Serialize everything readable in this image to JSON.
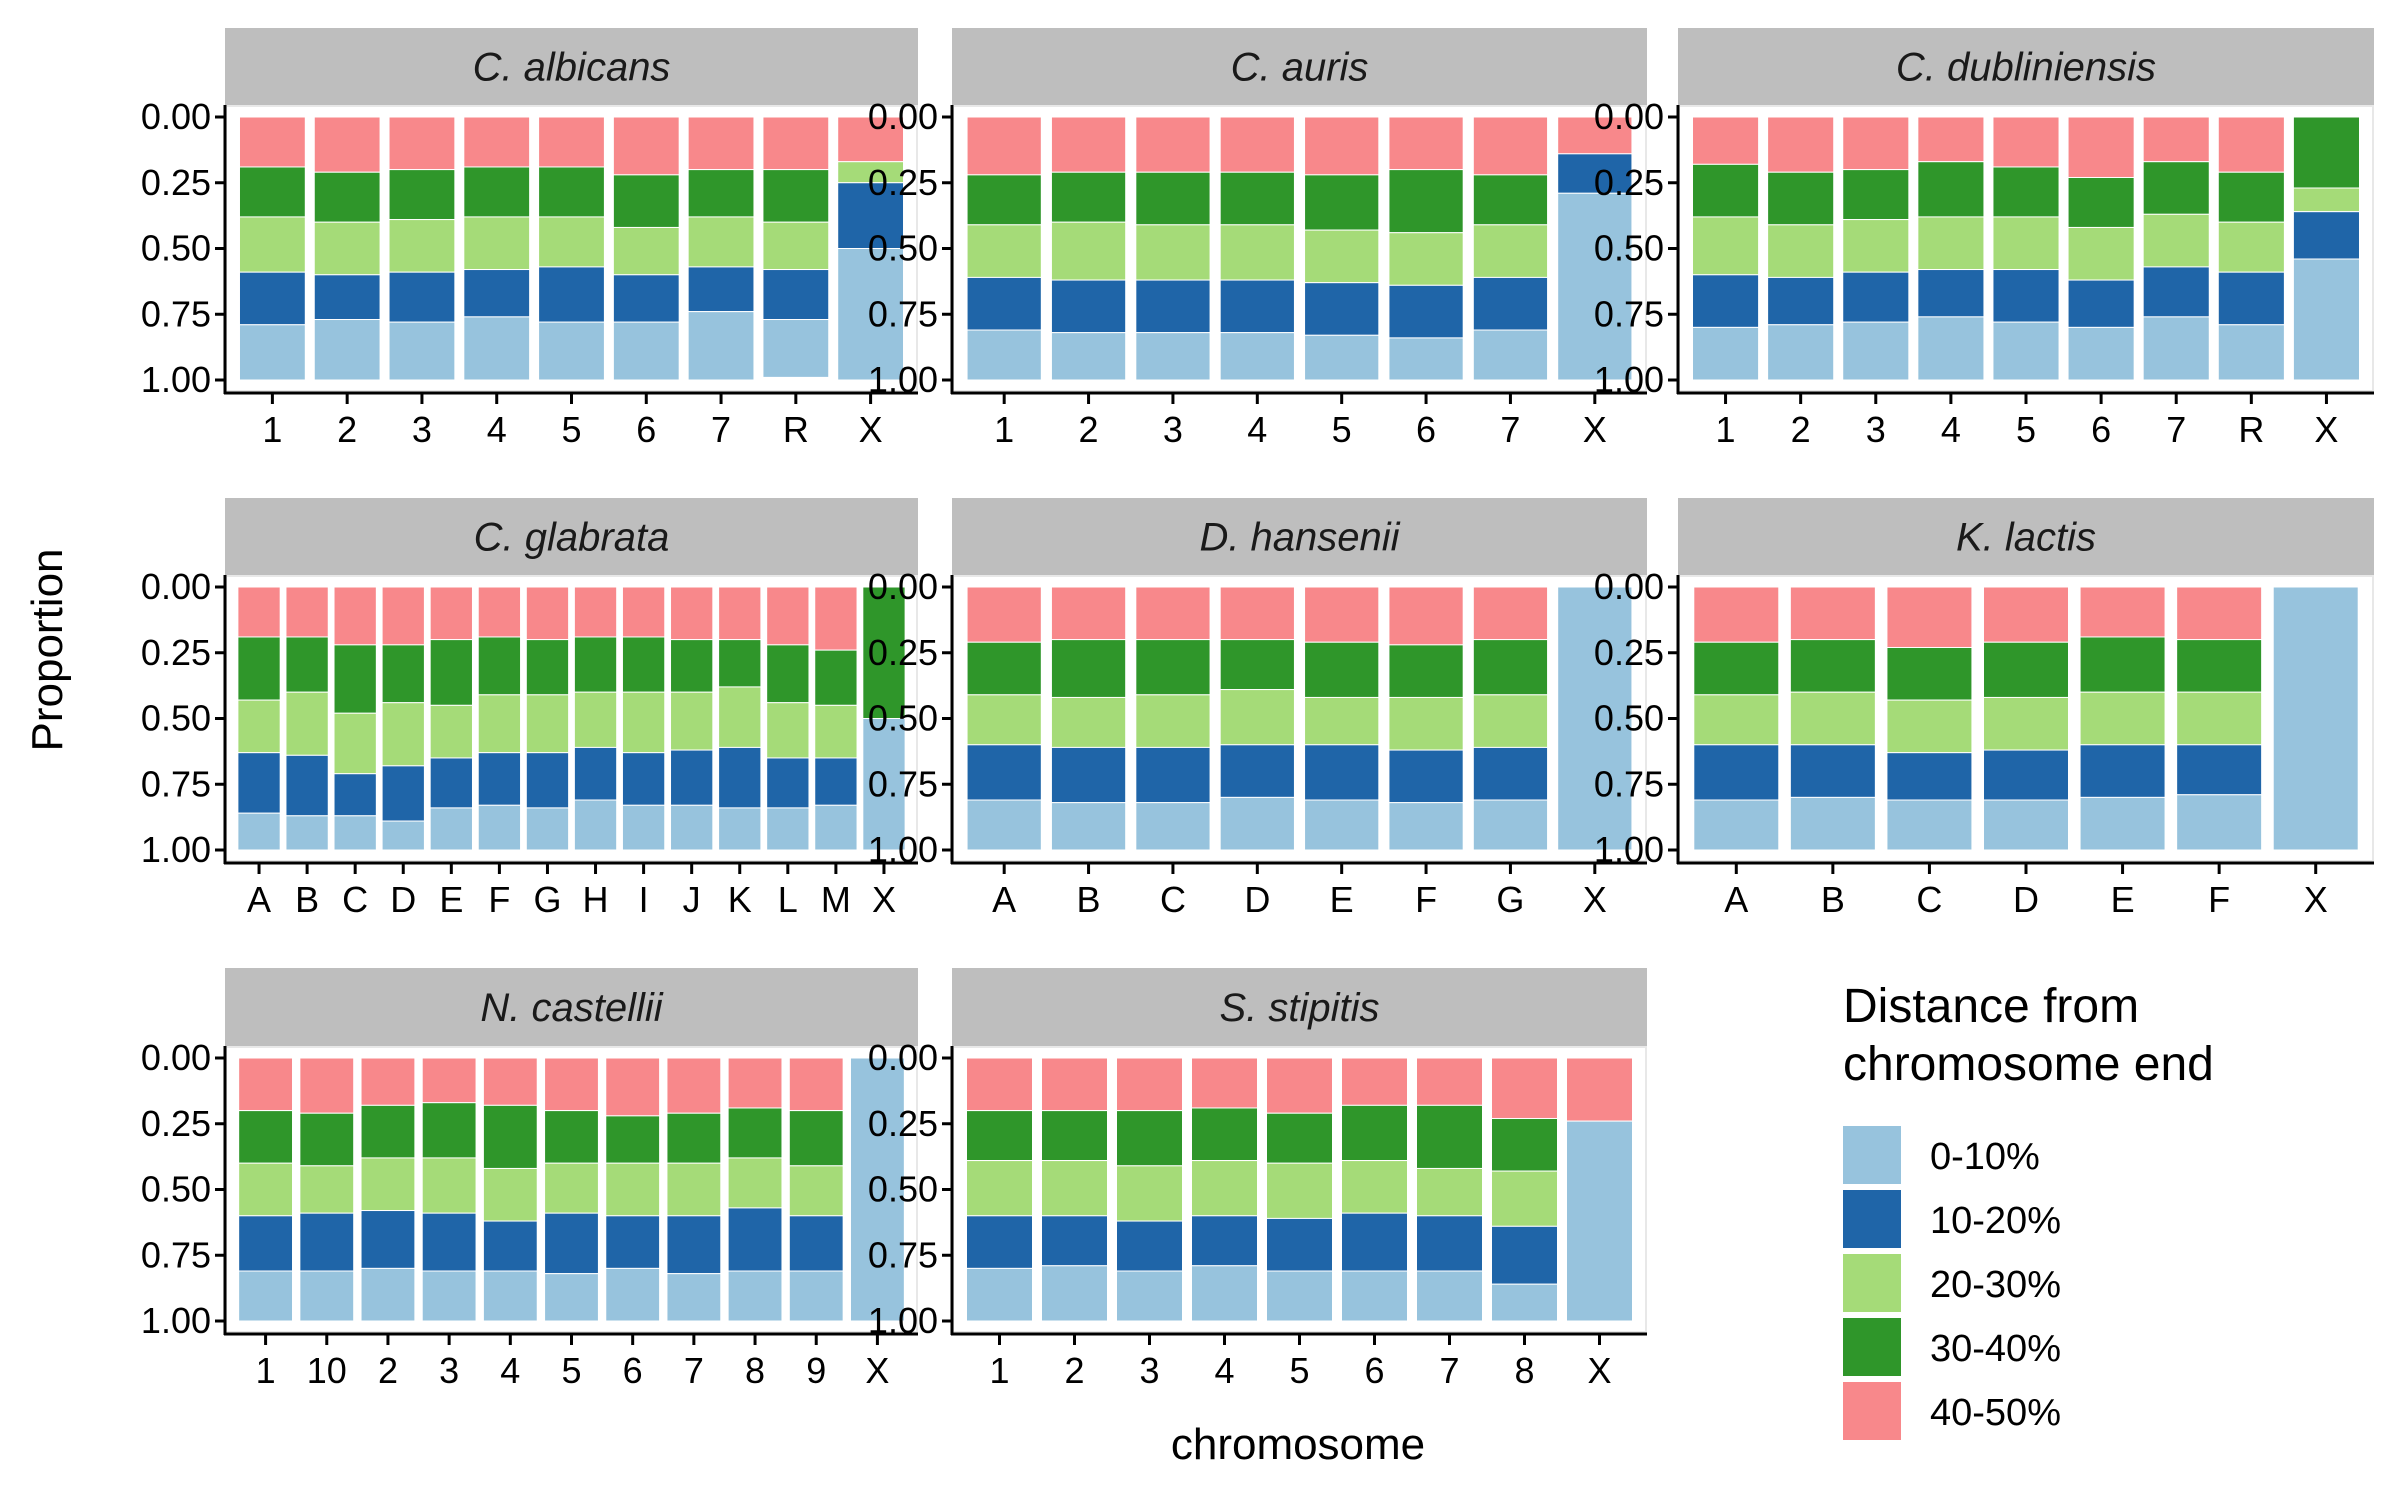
{
  "chart_data": {
    "type": "bar",
    "stacked": true,
    "xlabel": "chromosome",
    "ylabel": "Proportion",
    "ylim": [
      0,
      1
    ],
    "y_reversed": true,
    "y_ticks": [
      "0.00",
      "0.25",
      "0.50",
      "0.75",
      "1.00"
    ],
    "legend": {
      "title_lines": [
        "Distance from",
        "chromosome end"
      ],
      "placement": "bottom-right",
      "order": [
        "0-10%",
        "10-20%",
        "20-30%",
        "30-40%",
        "40-50%"
      ]
    },
    "stack_order_from_top": [
      "40-50%",
      "30-40%",
      "20-30%",
      "10-20%",
      "0-10%"
    ],
    "colors": {
      "0-10%": "#97c3dd",
      "10-20%": "#1f65a8",
      "20-30%": "#a5db78",
      "30-40%": "#2f962a",
      "40-50%": "#f8888b"
    },
    "panels": [
      {
        "title": "C. albicans",
        "categories": [
          "1",
          "2",
          "3",
          "4",
          "5",
          "6",
          "7",
          "R",
          "X"
        ],
        "series": [
          {
            "name": "40-50%",
            "values": [
              0.19,
              0.21,
              0.2,
              0.19,
              0.19,
              0.22,
              0.2,
              0.2,
              0.17
            ]
          },
          {
            "name": "30-40%",
            "values": [
              0.19,
              0.19,
              0.19,
              0.19,
              0.19,
              0.2,
              0.18,
              0.2,
              0.0
            ]
          },
          {
            "name": "20-30%",
            "values": [
              0.21,
              0.2,
              0.2,
              0.2,
              0.19,
              0.18,
              0.19,
              0.18,
              0.08
            ]
          },
          {
            "name": "10-20%",
            "values": [
              0.2,
              0.17,
              0.19,
              0.18,
              0.21,
              0.18,
              0.17,
              0.19,
              0.25
            ]
          },
          {
            "name": "0-10%",
            "values": [
              0.21,
              0.23,
              0.22,
              0.24,
              0.22,
              0.22,
              0.26,
              0.22,
              0.5
            ]
          }
        ]
      },
      {
        "title": "C. auris",
        "categories": [
          "1",
          "2",
          "3",
          "4",
          "5",
          "6",
          "7",
          "X"
        ],
        "series": [
          {
            "name": "40-50%",
            "values": [
              0.22,
              0.21,
              0.21,
              0.21,
              0.22,
              0.2,
              0.22,
              0.14
            ]
          },
          {
            "name": "30-40%",
            "values": [
              0.19,
              0.19,
              0.2,
              0.2,
              0.21,
              0.24,
              0.19,
              0.0
            ]
          },
          {
            "name": "20-30%",
            "values": [
              0.2,
              0.22,
              0.21,
              0.21,
              0.2,
              0.2,
              0.2,
              0.0
            ]
          },
          {
            "name": "10-20%",
            "values": [
              0.2,
              0.2,
              0.2,
              0.2,
              0.2,
              0.2,
              0.2,
              0.15
            ]
          },
          {
            "name": "0-10%",
            "values": [
              0.19,
              0.18,
              0.18,
              0.18,
              0.17,
              0.16,
              0.19,
              0.71
            ]
          }
        ]
      },
      {
        "title": "C. dubliniensis",
        "categories": [
          "1",
          "2",
          "3",
          "4",
          "5",
          "6",
          "7",
          "R",
          "X"
        ],
        "series": [
          {
            "name": "40-50%",
            "values": [
              0.18,
              0.21,
              0.2,
              0.17,
              0.19,
              0.23,
              0.17,
              0.21,
              0.0
            ]
          },
          {
            "name": "30-40%",
            "values": [
              0.2,
              0.2,
              0.19,
              0.21,
              0.19,
              0.19,
              0.2,
              0.19,
              0.27
            ]
          },
          {
            "name": "20-30%",
            "values": [
              0.22,
              0.2,
              0.2,
              0.2,
              0.2,
              0.2,
              0.2,
              0.19,
              0.09
            ]
          },
          {
            "name": "10-20%",
            "values": [
              0.2,
              0.18,
              0.19,
              0.18,
              0.2,
              0.18,
              0.19,
              0.2,
              0.18
            ]
          },
          {
            "name": "0-10%",
            "values": [
              0.2,
              0.21,
              0.22,
              0.24,
              0.22,
              0.2,
              0.24,
              0.21,
              0.46
            ]
          }
        ]
      },
      {
        "title": "C. glabrata",
        "categories": [
          "A",
          "B",
          "C",
          "D",
          "E",
          "F",
          "G",
          "H",
          "I",
          "J",
          "K",
          "L",
          "M",
          "X"
        ],
        "series": [
          {
            "name": "40-50%",
            "values": [
              0.19,
              0.19,
              0.22,
              0.22,
              0.2,
              0.19,
              0.2,
              0.19,
              0.19,
              0.2,
              0.2,
              0.22,
              0.24,
              0.0
            ]
          },
          {
            "name": "30-40%",
            "values": [
              0.24,
              0.21,
              0.26,
              0.22,
              0.25,
              0.22,
              0.21,
              0.21,
              0.21,
              0.2,
              0.18,
              0.22,
              0.21,
              0.5
            ]
          },
          {
            "name": "20-30%",
            "values": [
              0.2,
              0.24,
              0.23,
              0.24,
              0.2,
              0.22,
              0.22,
              0.21,
              0.23,
              0.22,
              0.23,
              0.21,
              0.2,
              0.0
            ]
          },
          {
            "name": "10-20%",
            "values": [
              0.23,
              0.23,
              0.16,
              0.21,
              0.19,
              0.2,
              0.21,
              0.2,
              0.2,
              0.21,
              0.23,
              0.19,
              0.18,
              0.0
            ]
          },
          {
            "name": "0-10%",
            "values": [
              0.14,
              0.13,
              0.13,
              0.11,
              0.16,
              0.17,
              0.16,
              0.19,
              0.17,
              0.17,
              0.16,
              0.16,
              0.17,
              0.5
            ]
          }
        ]
      },
      {
        "title": "D. hansenii",
        "categories": [
          "A",
          "B",
          "C",
          "D",
          "E",
          "F",
          "G",
          "X"
        ],
        "series": [
          {
            "name": "40-50%",
            "values": [
              0.21,
              0.2,
              0.2,
              0.2,
              0.21,
              0.22,
              0.2,
              0.0
            ]
          },
          {
            "name": "30-40%",
            "values": [
              0.2,
              0.22,
              0.21,
              0.19,
              0.21,
              0.2,
              0.21,
              0.0
            ]
          },
          {
            "name": "20-30%",
            "values": [
              0.19,
              0.19,
              0.2,
              0.21,
              0.18,
              0.2,
              0.2,
              0.0
            ]
          },
          {
            "name": "10-20%",
            "values": [
              0.21,
              0.21,
              0.21,
              0.2,
              0.21,
              0.2,
              0.2,
              0.0
            ]
          },
          {
            "name": "0-10%",
            "values": [
              0.19,
              0.18,
              0.18,
              0.2,
              0.19,
              0.18,
              0.19,
              1.0
            ]
          }
        ]
      },
      {
        "title": "K. lactis",
        "categories": [
          "A",
          "B",
          "C",
          "D",
          "E",
          "F",
          "X"
        ],
        "series": [
          {
            "name": "40-50%",
            "values": [
              0.21,
              0.2,
              0.23,
              0.21,
              0.19,
              0.2,
              0.0
            ]
          },
          {
            "name": "30-40%",
            "values": [
              0.2,
              0.2,
              0.2,
              0.21,
              0.21,
              0.2,
              0.0
            ]
          },
          {
            "name": "20-30%",
            "values": [
              0.19,
              0.2,
              0.2,
              0.2,
              0.2,
              0.2,
              0.0
            ]
          },
          {
            "name": "10-20%",
            "values": [
              0.21,
              0.2,
              0.18,
              0.19,
              0.2,
              0.19,
              0.0
            ]
          },
          {
            "name": "0-10%",
            "values": [
              0.19,
              0.2,
              0.19,
              0.19,
              0.2,
              0.21,
              1.0
            ]
          }
        ]
      },
      {
        "title": "N. castellii",
        "categories": [
          "1",
          "10",
          "2",
          "3",
          "4",
          "5",
          "6",
          "7",
          "8",
          "9",
          "X"
        ],
        "series": [
          {
            "name": "40-50%",
            "values": [
              0.2,
              0.21,
              0.18,
              0.17,
              0.18,
              0.2,
              0.22,
              0.21,
              0.19,
              0.2,
              0.0
            ]
          },
          {
            "name": "30-40%",
            "values": [
              0.2,
              0.2,
              0.2,
              0.21,
              0.24,
              0.2,
              0.18,
              0.19,
              0.19,
              0.21,
              0.0
            ]
          },
          {
            "name": "20-30%",
            "values": [
              0.2,
              0.18,
              0.2,
              0.21,
              0.2,
              0.19,
              0.2,
              0.2,
              0.19,
              0.19,
              0.0
            ]
          },
          {
            "name": "10-20%",
            "values": [
              0.21,
              0.22,
              0.22,
              0.22,
              0.19,
              0.23,
              0.2,
              0.22,
              0.24,
              0.21,
              0.0
            ]
          },
          {
            "name": "0-10%",
            "values": [
              0.19,
              0.19,
              0.2,
              0.19,
              0.19,
              0.18,
              0.2,
              0.18,
              0.19,
              0.19,
              1.0
            ]
          }
        ]
      },
      {
        "title": "S. stipitis",
        "categories": [
          "1",
          "2",
          "3",
          "4",
          "5",
          "6",
          "7",
          "8",
          "X"
        ],
        "series": [
          {
            "name": "40-50%",
            "values": [
              0.2,
              0.2,
              0.2,
              0.19,
              0.21,
              0.18,
              0.18,
              0.23,
              0.24
            ]
          },
          {
            "name": "30-40%",
            "values": [
              0.19,
              0.19,
              0.21,
              0.2,
              0.19,
              0.21,
              0.24,
              0.2,
              0.0
            ]
          },
          {
            "name": "20-30%",
            "values": [
              0.21,
              0.21,
              0.21,
              0.21,
              0.21,
              0.2,
              0.18,
              0.21,
              0.0
            ]
          },
          {
            "name": "10-20%",
            "values": [
              0.2,
              0.19,
              0.19,
              0.19,
              0.2,
              0.22,
              0.21,
              0.22,
              0.0
            ]
          },
          {
            "name": "0-10%",
            "values": [
              0.2,
              0.21,
              0.19,
              0.21,
              0.19,
              0.19,
              0.19,
              0.14,
              0.76
            ]
          }
        ]
      }
    ]
  }
}
